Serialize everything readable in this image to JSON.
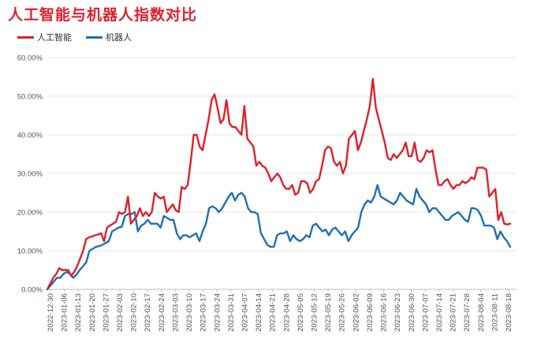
{
  "chart_data": {
    "type": "line",
    "title": "人工智能与机器人指数对比",
    "ylim": [
      0,
      60
    ],
    "yticks": [
      "0.00%",
      "10.00%",
      "20.00%",
      "30.00%",
      "40.00%",
      "50.00%",
      "60.00%"
    ],
    "xlabels": [
      "2022-12-30",
      "2023-01-06",
      "2023-01-13",
      "2023-01-20",
      "2023-01-27",
      "2023-02-03",
      "2023-02-10",
      "2023-02-17",
      "2023-02-24",
      "2023-03-03",
      "2023-03-10",
      "2023-03-17",
      "2023-03-24",
      "2023-03-31",
      "2023-04-07",
      "2023-04-14",
      "2023-04-21",
      "2023-04-28",
      "2023-05-05",
      "2023-05-12",
      "2023-05-19",
      "2023-05-26",
      "2023-06-02",
      "2023-06-09",
      "2023-06-16",
      "2023-06-23",
      "2023-06-30",
      "2023-07-07",
      "2023-07-14",
      "2023-07-21",
      "2023-07-28",
      "2023-08-04",
      "2023-08-11",
      "2023-08-18"
    ],
    "grid": true,
    "legend_position": "top-left",
    "series": [
      {
        "name": "人工智能",
        "color": "#e0202a",
        "values": [
          0,
          1.5,
          3,
          4,
          5.5,
          5,
          5,
          5,
          3.5,
          4.5,
          6,
          8,
          10,
          13,
          13.5,
          13.7,
          14,
          14.2,
          14.5,
          12.5,
          16,
          16.5,
          17,
          17.5,
          20,
          19.5,
          20,
          24,
          17,
          18,
          19,
          21,
          19,
          20,
          19,
          20,
          25,
          24,
          23.5,
          24,
          20,
          21,
          22,
          20.5,
          20,
          26.5,
          26,
          27,
          33,
          40,
          40,
          37,
          36,
          40,
          44,
          49,
          50.5,
          47,
          43,
          44,
          49,
          43,
          42,
          42,
          41,
          40,
          47.5,
          39,
          38,
          37,
          32,
          33,
          32,
          31.5,
          30,
          28,
          29,
          30,
          29,
          27,
          26,
          26,
          27,
          24.5,
          25,
          28,
          28,
          27.5,
          25,
          26,
          28,
          28.5,
          32,
          36,
          37,
          36.5,
          33,
          32,
          33,
          30,
          32,
          39,
          40,
          41,
          36,
          38,
          41,
          44,
          47.5,
          54.5,
          47,
          44,
          41,
          38,
          34,
          33.5,
          35,
          34,
          35,
          36,
          38,
          34.5,
          34.5,
          38,
          33.5,
          33,
          34,
          36,
          35.5,
          36,
          31,
          27,
          27,
          28,
          28.5,
          27,
          26,
          27,
          27,
          28,
          27.5,
          28,
          29,
          28.5,
          31.5,
          31.5,
          31.5,
          31,
          24,
          25,
          26,
          18,
          20,
          17,
          16.8,
          17
        ]
      },
      {
        "name": "机器人",
        "color": "#1f6fb5",
        "values": [
          0,
          1,
          2,
          3,
          3,
          4,
          4.5,
          4,
          3,
          3.8,
          5,
          6,
          7,
          10,
          10.5,
          11,
          11.2,
          11.5,
          12,
          12.5,
          15,
          15.5,
          16,
          16.2,
          19,
          19.5,
          19.5,
          20,
          15,
          16.5,
          17,
          18,
          17,
          17,
          17,
          16,
          19,
          18.5,
          18,
          18,
          14.5,
          13,
          14,
          14,
          13.5,
          14,
          14.5,
          12.5,
          15,
          17,
          21,
          21.5,
          21,
          20,
          21,
          22.5,
          24,
          25,
          23,
          24.5,
          25,
          24,
          21,
          20,
          20,
          19.5,
          14.5,
          13,
          11.5,
          11,
          11,
          14,
          14.5,
          14.5,
          15,
          12.5,
          14,
          13,
          12.5,
          13,
          14,
          13.5,
          16.5,
          17,
          16,
          15,
          15.5,
          14,
          15.5,
          16,
          15,
          14,
          15,
          12.5,
          14,
          15,
          16,
          20,
          22,
          23,
          22.5,
          24,
          27,
          24,
          23.5,
          23,
          22.5,
          22,
          23,
          25,
          24,
          23,
          22.5,
          22,
          26,
          24,
          23,
          22,
          20,
          21,
          21,
          20,
          19,
          18,
          18,
          19,
          19.5,
          20,
          19,
          18,
          17.5,
          21,
          21,
          20.5,
          19,
          16.5,
          16.5,
          16.5,
          16,
          13,
          15,
          13.5,
          12.5,
          11
        ]
      }
    ]
  }
}
